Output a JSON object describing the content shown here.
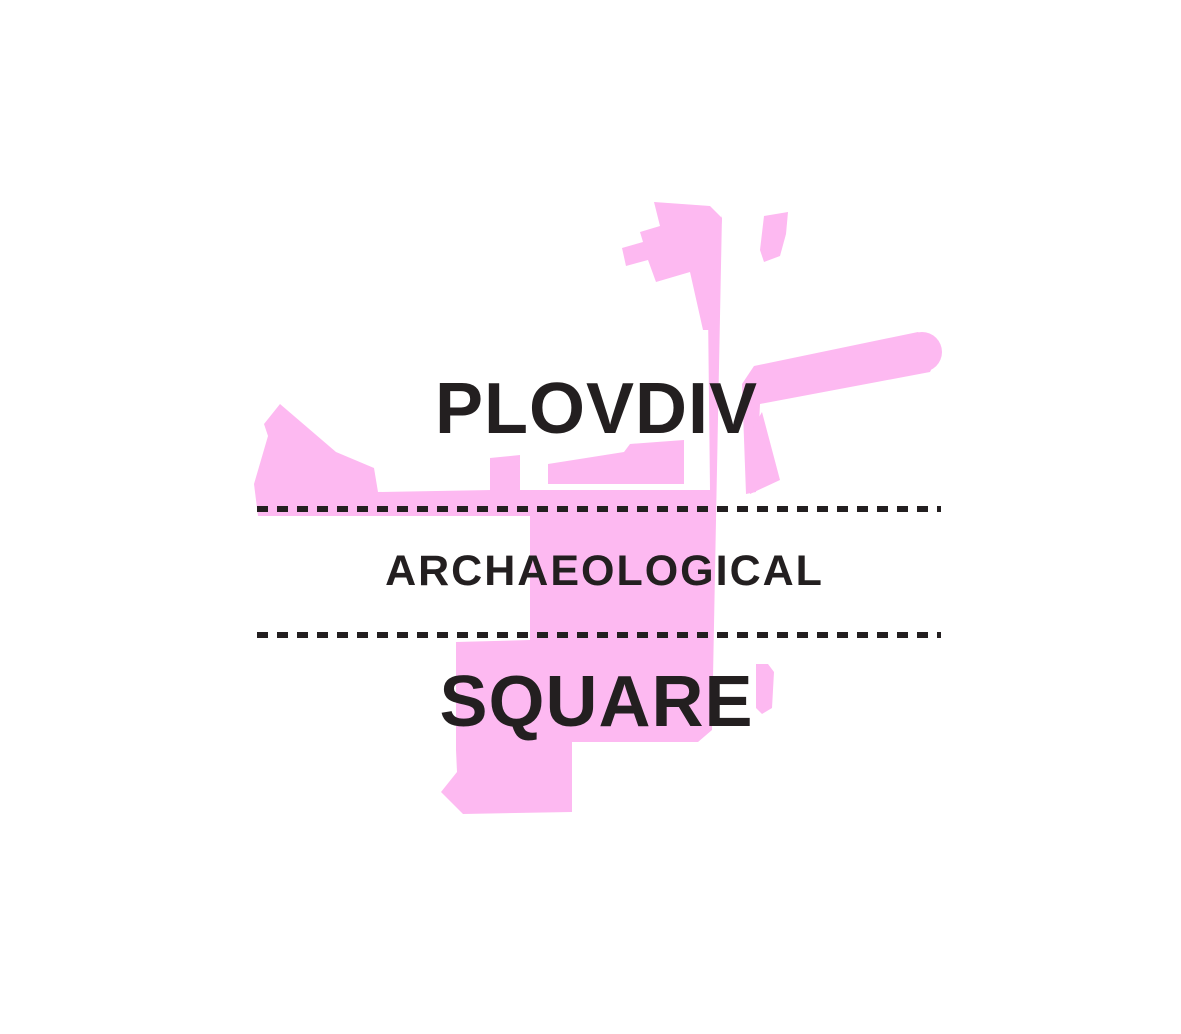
{
  "logo": {
    "line1": "PLOVDIV",
    "line2": "ARCHAEOLOGICAL",
    "line3": "SQUARE"
  },
  "colors": {
    "background": "#ffffff",
    "text": "#231f20",
    "plan_shape": "#fdb9f1"
  }
}
